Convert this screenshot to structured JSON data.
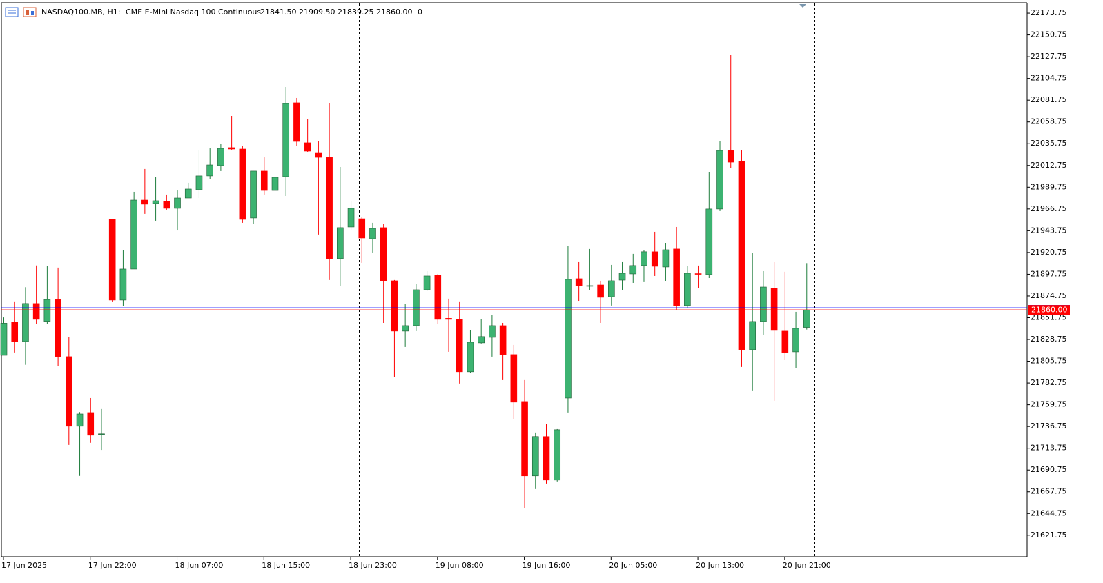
{
  "header": {
    "symbol": "NASDAQ100.MB, H1:",
    "description": "CME E-Mini Nasdaq 100 Continuous",
    "open": "21841.50",
    "high": "21909.50",
    "low": "21839.25",
    "close": "21860.00",
    "volume": "0"
  },
  "chart_data": {
    "type": "candlestick",
    "categories": [
      "17 Jun 2025",
      null,
      null,
      null,
      null,
      null,
      null,
      null,
      "17 Jun 22:00",
      null,
      null,
      null,
      null,
      null,
      null,
      null,
      "18 Jun 07:00",
      null,
      null,
      null,
      null,
      null,
      null,
      null,
      "18 Jun 15:00",
      null,
      null,
      null,
      null,
      null,
      null,
      null,
      "18 Jun 23:00",
      null,
      null,
      null,
      null,
      null,
      null,
      null,
      "19 Jun 08:00",
      null,
      null,
      null,
      null,
      null,
      null,
      null,
      "19 Jun 16:00",
      null,
      null,
      null,
      null,
      null,
      null,
      null,
      "20 Jun 05:00",
      null,
      null,
      null,
      null,
      null,
      null,
      null,
      "20 Jun 13:00",
      null,
      null,
      null,
      null,
      null,
      null,
      null,
      "20 Jun 21:00",
      null,
      null
    ],
    "open": [
      21812,
      21847,
      21826.6,
      21866.8,
      21848,
      21871,
      21810.6,
      21737,
      21751.5,
      21729,
      21955.7,
      21870.4,
      21903.2,
      21976.1,
      21972.5,
      21974.7,
      21967.4,
      21978.3,
      21987.1,
      22001.7,
      22012.6,
      22031.6,
      22030.1,
      21957.2,
      22006.8,
      21986.3,
      22000.9,
      22079,
      22036.7,
      22025.7,
      22021.3,
      21914.2,
      21947.7,
      21956.4,
      21935.2,
      21947,
      21890.8,
      21837.6,
      21843.4,
      21881.3,
      21896.6,
      21851.1,
      21850,
      21794.6,
      21825.2,
      21831,
      21843.4,
      21812.8,
      21763.2,
      21684.5,
      21726.1,
      21680.1,
      21766.8,
      21893,
      21885.7,
      21886.4,
      21873.9,
      21891.5,
      21898.1,
      21906.9,
      21921.5,
      21905.4,
      21924.4,
      21864.6,
      21898.4,
      21897.4,
      21966.7,
      22028.6,
      22017,
      21817.9,
      21847.8,
      21882.8,
      21837.6,
      21815.7,
      21841.5
    ],
    "high": [
      21852,
      21869,
      21884,
      21907,
      21906.2,
      21904.7,
      21831.7,
      21752,
      21766.8,
      21755.2,
      21955.7,
      21923.6,
      21984.9,
      22009,
      22000.9,
      21982,
      21986.3,
      21994.4,
      22028.6,
      22030.8,
      22035.2,
      22065.1,
      22033,
      22006.8,
      22021.3,
      22022.8,
      22095.7,
      22084.1,
      22061.5,
      22038.8,
      22078.2,
      22011.1,
      21975.4,
      21957.9,
      21952.1,
      21950.6,
      21891.6,
      21866,
      21887.2,
      21901,
      21898.1,
      21871.9,
      21869,
      21838.3,
      21850,
      21854.4,
      21846.3,
      21823,
      21785.8,
      21730.4,
      21739.2,
      21734,
      21927.3,
      21910.5,
      21924.4,
      21890.8,
      21907.6,
      21910.5,
      21919.3,
      21922.9,
      21942.6,
      21930.9,
      21947.7,
      21906.1,
      21906.9,
      22005.3,
      22038.1,
      22129.3,
      22029.4,
      21920.7,
      21901,
      21910.5,
      21900.3,
      21858,
      21909.5
    ],
    "low": [
      21812,
      21815,
      21802,
      21845,
      21845,
      21800.4,
      21717.3,
      21684.5,
      21719.5,
      21712,
      21868.9,
      21863.8,
      21903.2,
      21961.6,
      21954.3,
      21965.2,
      21944,
      21978.3,
      21978.3,
      21998,
      22006.8,
      22029.4,
      21952.1,
      21951.3,
      21982,
      21925.8,
      21980.5,
      22033.7,
      22026.5,
      21939.7,
      21891.6,
      21885,
      21944.8,
      21909.8,
      21920.7,
      21846.3,
      21788.8,
      21820.8,
      21837.6,
      21879.9,
      21844.9,
      21815.7,
      21782.2,
      21793.1,
      21824.5,
      21810.6,
      21785.8,
      21744.3,
      21650.2,
      21670.6,
      21676.4,
      21678.6,
      21751.5,
      21869.6,
      21880.6,
      21846.3,
      21864.6,
      21881.3,
      21888.6,
      21889.4,
      21895.9,
      21890.8,
      21859.5,
      21862.4,
      21882.8,
      21893.7,
      21964.5,
      22009.7,
      21799.7,
      21774.9,
      21833.9,
      21763.9,
      21806.9,
      21798.2,
      21839.25
    ],
    "close": [
      21846,
      21826.6,
      21866.8,
      21850,
      21871,
      21810.6,
      21737,
      21750,
      21727.5,
      21729,
      21870.4,
      21903.2,
      21976.1,
      21971.8,
      21975.4,
      21967.4,
      21978.3,
      21987.8,
      22001.7,
      22013.3,
      22030.8,
      22030.1,
      21955.7,
      22006.8,
      21986.3,
      22000.2,
      22078.2,
      22038.1,
      22027.9,
      22021.3,
      21914.2,
      21947,
      21967.4,
      21936,
      21946.2,
      21890.8,
      21837.6,
      21843.4,
      21881.3,
      21895.9,
      21850,
      21850,
      21794.6,
      21825.9,
      21831.8,
      21843.4,
      21812.8,
      21762.5,
      21684.5,
      21726.1,
      21680.1,
      21733.3,
      21892.3,
      21885.7,
      21885.7,
      21873.3,
      21890.8,
      21898.8,
      21906.9,
      21921.5,
      21906.1,
      21923.6,
      21864.6,
      21898.8,
      21898.1,
      21966.7,
      22028.6,
      22016.2,
      21817.9,
      21847.8,
      21884.2,
      21838.3,
      21815,
      21840.5,
      21860
    ],
    "up_color": "#3cb371",
    "down_color": "#ff0000",
    "ylim": [
      21599,
      22184
    ],
    "yticks": [
      22173.75,
      22150.75,
      22127.75,
      22104.75,
      22081.75,
      22058.75,
      22035.75,
      22012.75,
      21989.75,
      21966.75,
      21943.75,
      21920.75,
      21897.75,
      21874.75,
      21851.75,
      21828.75,
      21805.75,
      21782.75,
      21759.75,
      21736.75,
      21713.75,
      21690.75,
      21667.75,
      21644.75,
      21621.75
    ],
    "grid": false,
    "price_lines": [
      {
        "value": 21862.25,
        "color": "#0000ff"
      },
      {
        "value": 21860,
        "label": "21860.00",
        "color": "#ff0000"
      }
    ]
  }
}
